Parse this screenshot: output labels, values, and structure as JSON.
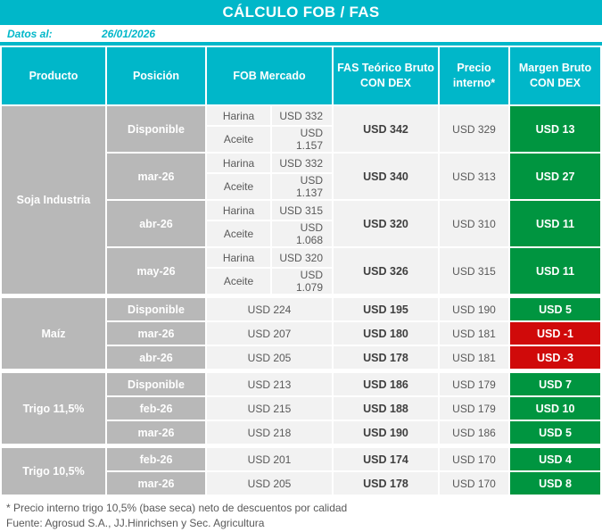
{
  "chart_data": {
    "type": "table",
    "title": "CÁLCULO FOB / FAS",
    "date_label": "Datos al:",
    "date_value": "26/01/2026",
    "columns": [
      "Producto",
      "Posición",
      "FOB Mercado",
      "FAS Teórico Bruto CON DEX",
      "Precio interno*",
      "Margen Bruto CON DEX"
    ],
    "products": [
      {
        "name": "Soja Industria",
        "rows": [
          {
            "position": "Disponible",
            "fob": [
              [
                "Harina",
                "USD 332"
              ],
              [
                "Aceite",
                "USD 1.157"
              ]
            ],
            "fas": "USD 342",
            "precio": "USD 329",
            "margen": "USD 13",
            "margen_color": "green"
          },
          {
            "position": "mar-26",
            "fob": [
              [
                "Harina",
                "USD 332"
              ],
              [
                "Aceite",
                "USD 1.137"
              ]
            ],
            "fas": "USD 340",
            "precio": "USD 313",
            "margen": "USD 27",
            "margen_color": "green"
          },
          {
            "position": "abr-26",
            "fob": [
              [
                "Harina",
                "USD 315"
              ],
              [
                "Aceite",
                "USD 1.068"
              ]
            ],
            "fas": "USD 320",
            "precio": "USD 310",
            "margen": "USD 11",
            "margen_color": "green"
          },
          {
            "position": "may-26",
            "fob": [
              [
                "Harina",
                "USD 320"
              ],
              [
                "Aceite",
                "USD 1.079"
              ]
            ],
            "fas": "USD 326",
            "precio": "USD 315",
            "margen": "USD 11",
            "margen_color": "green"
          }
        ]
      },
      {
        "name": "Maíz",
        "rows": [
          {
            "position": "Disponible",
            "fob": "USD 224",
            "fas": "USD 195",
            "precio": "USD 190",
            "margen": "USD 5",
            "margen_color": "green"
          },
          {
            "position": "mar-26",
            "fob": "USD 207",
            "fas": "USD 180",
            "precio": "USD 181",
            "margen": "USD -1",
            "margen_color": "red"
          },
          {
            "position": "abr-26",
            "fob": "USD 205",
            "fas": "USD 178",
            "precio": "USD 181",
            "margen": "USD -3",
            "margen_color": "red"
          }
        ]
      },
      {
        "name": "Trigo 11,5%",
        "rows": [
          {
            "position": "Disponible",
            "fob": "USD 213",
            "fas": "USD 186",
            "precio": "USD 179",
            "margen": "USD 7",
            "margen_color": "green"
          },
          {
            "position": "feb-26",
            "fob": "USD 215",
            "fas": "USD 188",
            "precio": "USD 179",
            "margen": "USD 10",
            "margen_color": "green"
          },
          {
            "position": "mar-26",
            "fob": "USD 218",
            "fas": "USD 190",
            "precio": "USD 186",
            "margen": "USD 5",
            "margen_color": "green"
          }
        ]
      },
      {
        "name": "Trigo 10,5%",
        "rows": [
          {
            "position": "feb-26",
            "fob": "USD 201",
            "fas": "USD 174",
            "precio": "USD 170",
            "margen": "USD 4",
            "margen_color": "green"
          },
          {
            "position": "mar-26",
            "fob": "USD 205",
            "fas": "USD 178",
            "precio": "USD 170",
            "margen": "USD 8",
            "margen_color": "green"
          }
        ]
      }
    ],
    "footnote": "* Precio interno trigo 10,5% (base seca) neto de descuentos por calidad",
    "source": "Fuente: Agrosud S.A., JJ.Hinrichsen y Sec. Agricultura"
  },
  "colors": {
    "cyan": "#00b7c9",
    "green": "#009540",
    "red": "#d00a0a",
    "gray_cell": "#b8b8b8",
    "row_bg": "#f2f2f2"
  }
}
